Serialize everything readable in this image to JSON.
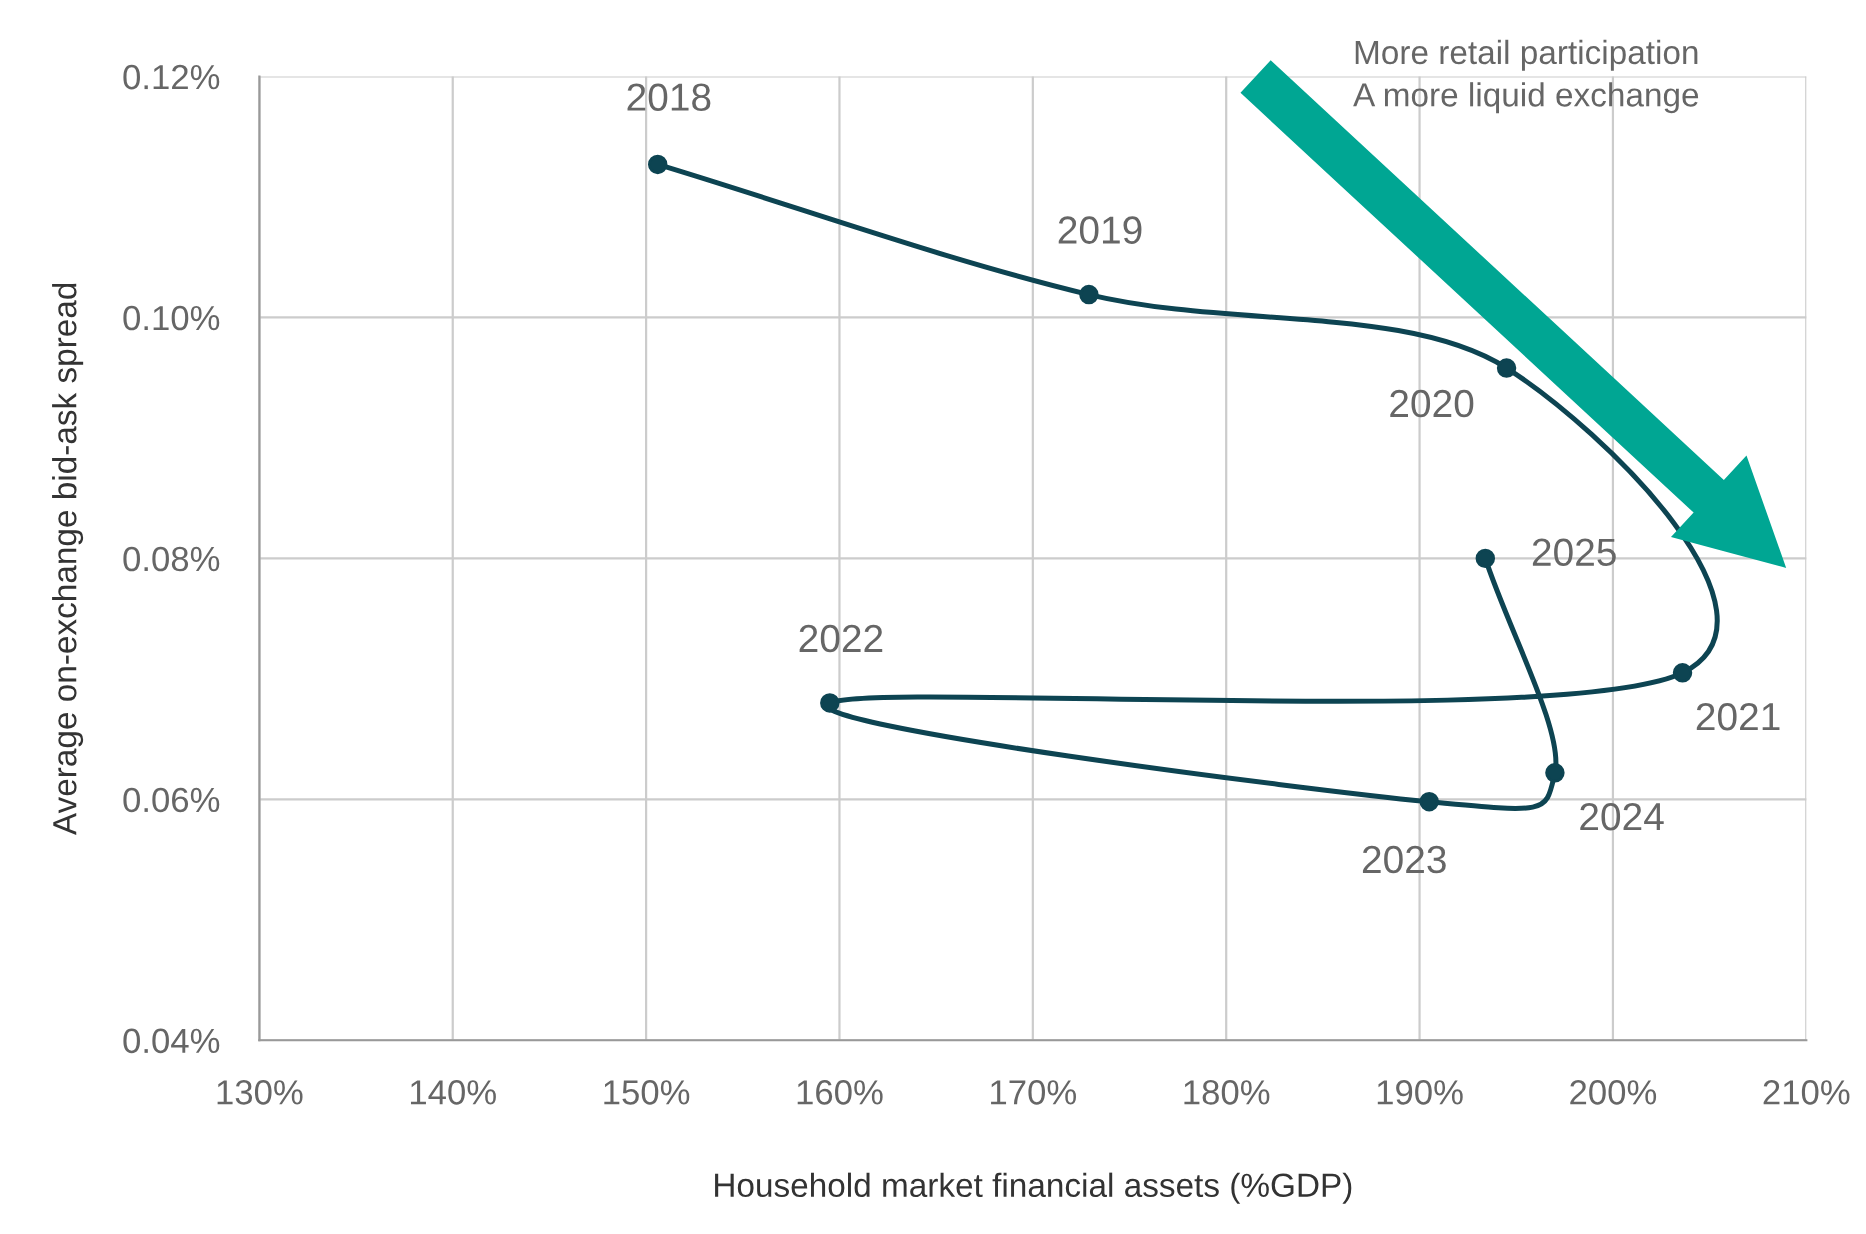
{
  "chart_data": {
    "type": "line",
    "xlabel": "Household market financial assets (%GDP)",
    "ylabel": "Average on-exchange bid-ask spread",
    "series": [
      {
        "color": "#0d4452",
        "x": [
          150.6,
          172.9,
          194.5,
          203.6,
          159.5,
          190.5,
          197.0,
          193.4
        ],
        "values": [
          0.1127,
          0.1019,
          0.0958,
          0.0705,
          0.068,
          0.0598,
          0.0622,
          0.08
        ]
      }
    ],
    "marker": "circle",
    "xlim": [
      130,
      210
    ],
    "xticks": [
      {
        "value": 130,
        "label": "130%"
      },
      {
        "value": 140,
        "label": "140%"
      },
      {
        "value": 150,
        "label": "150%"
      },
      {
        "value": 160,
        "label": "160%"
      },
      {
        "value": 170,
        "label": "170%"
      },
      {
        "value": 180,
        "label": "180%"
      },
      {
        "value": 190,
        "label": "190%"
      },
      {
        "value": 200,
        "label": "200%"
      },
      {
        "value": 210,
        "label": "210%"
      }
    ],
    "ylim": [
      0.04,
      0.12
    ],
    "yticks": [
      {
        "value": 0.04,
        "label": "0.04%"
      },
      {
        "value": 0.06,
        "label": "0.06%"
      },
      {
        "value": 0.08,
        "label": "0.08%"
      },
      {
        "value": 0.1,
        "label": "0.10%"
      },
      {
        "value": 0.12,
        "label": "0.12%"
      }
    ],
    "grid": true,
    "legend": false,
    "annotations": [
      {
        "text": "2018",
        "x": 150.6,
        "y": 0.1127
      },
      {
        "text": "2019",
        "x": 172.9,
        "y": 0.1019
      },
      {
        "text": "2020",
        "x": 194.5,
        "y": 0.0958
      },
      {
        "text": "2021",
        "x": 203.6,
        "y": 0.0705
      },
      {
        "text": "2022",
        "x": 159.5,
        "y": 0.068
      },
      {
        "text": "2023",
        "x": 190.5,
        "y": 0.0598
      },
      {
        "text": "2024",
        "x": 197.0,
        "y": 0.0622
      },
      {
        "text": "2025",
        "x": 193.4,
        "y": 0.08
      },
      "More retail participation",
      "A more liquid exchange"
    ]
  }
}
